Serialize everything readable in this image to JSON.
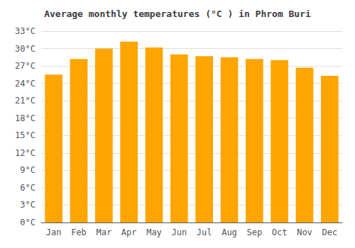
{
  "chart_data": {
    "type": "bar",
    "title": "Average monthly temperatures (°C ) in Phrom Buri",
    "categories": [
      "Jan",
      "Feb",
      "Mar",
      "Apr",
      "May",
      "Jun",
      "Jul",
      "Aug",
      "Sep",
      "Oct",
      "Nov",
      "Dec"
    ],
    "values": [
      25.5,
      28.2,
      30.0,
      31.2,
      30.2,
      29.0,
      28.7,
      28.5,
      28.2,
      28.0,
      26.7,
      25.3
    ],
    "color": "#FFA500",
    "ylim": [
      0,
      33
    ],
    "yticks": [
      {
        "value": 0,
        "label": "0°C"
      },
      {
        "value": 3,
        "label": "3°C"
      },
      {
        "value": 6,
        "label": "6°C"
      },
      {
        "value": 9,
        "label": "9°C"
      },
      {
        "value": 12,
        "label": "12°C"
      },
      {
        "value": 15,
        "label": "15°C"
      },
      {
        "value": 18,
        "label": "18°C"
      },
      {
        "value": 21,
        "label": "21°C"
      },
      {
        "value": 24,
        "label": "24°C"
      },
      {
        "value": 27,
        "label": "27°C"
      },
      {
        "value": 30,
        "label": "30°C"
      },
      {
        "value": 33,
        "label": "33°C"
      }
    ],
    "grid": true
  }
}
